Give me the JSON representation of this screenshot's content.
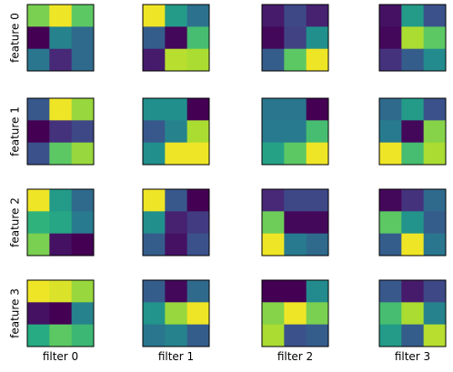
{
  "chart_data": {
    "type": "heatmap",
    "colormap": "viridis",
    "color_range": [
      0,
      1
    ],
    "rows": 4,
    "cols": 4,
    "row_labels": [
      "feature 0",
      "feature 1",
      "feature 2",
      "feature 3"
    ],
    "col_labels": [
      "filter 0",
      "filter 1",
      "filter 2",
      "filter 3"
    ],
    "grid": false,
    "ticks": false,
    "panels": [
      [
        [
          [
            0.8,
            0.98,
            0.75
          ],
          [
            0.0,
            0.45,
            0.35
          ],
          [
            0.4,
            0.12,
            0.35
          ]
        ],
        [
          [
            0.98,
            0.55,
            0.38
          ],
          [
            0.3,
            0.02,
            0.7
          ],
          [
            0.08,
            0.9,
            0.88
          ]
        ],
        [
          [
            0.08,
            0.22,
            0.1
          ],
          [
            0.02,
            0.2,
            0.5
          ],
          [
            0.3,
            0.75,
            0.98
          ]
        ],
        [
          [
            0.05,
            0.55,
            0.25
          ],
          [
            0.02,
            0.88,
            0.75
          ],
          [
            0.15,
            0.3,
            0.48
          ]
        ]
      ],
      [
        [
          [
            0.28,
            0.98,
            0.85
          ],
          [
            0.0,
            0.15,
            0.22
          ],
          [
            0.25,
            0.75,
            0.85
          ]
        ],
        [
          [
            0.5,
            0.5,
            0.0
          ],
          [
            0.28,
            0.45,
            0.88
          ],
          [
            0.5,
            0.98,
            0.98
          ]
        ],
        [
          [
            0.4,
            0.4,
            0.0
          ],
          [
            0.42,
            0.42,
            0.7
          ],
          [
            0.58,
            0.75,
            0.98
          ]
        ],
        [
          [
            0.35,
            0.55,
            0.25
          ],
          [
            0.42,
            0.02,
            0.82
          ],
          [
            0.98,
            0.7,
            0.88
          ]
        ]
      ],
      [
        [
          [
            0.98,
            0.55,
            0.35
          ],
          [
            0.65,
            0.6,
            0.42
          ],
          [
            0.8,
            0.05,
            0.0
          ]
        ],
        [
          [
            0.98,
            0.28,
            0.0
          ],
          [
            0.5,
            0.1,
            0.18
          ],
          [
            0.3,
            0.05,
            0.25
          ]
        ],
        [
          [
            0.12,
            0.22,
            0.22
          ],
          [
            0.78,
            0.02,
            0.02
          ],
          [
            0.98,
            0.42,
            0.35
          ]
        ],
        [
          [
            0.02,
            0.15,
            0.35
          ],
          [
            0.75,
            0.52,
            0.3
          ],
          [
            0.3,
            0.98,
            0.4
          ]
        ]
      ],
      [
        [
          [
            0.98,
            0.95,
            0.85
          ],
          [
            0.05,
            0.0,
            0.45
          ],
          [
            0.62,
            0.75,
            0.68
          ]
        ],
        [
          [
            0.3,
            0.02,
            0.35
          ],
          [
            0.52,
            0.85,
            0.98
          ],
          [
            0.4,
            0.45,
            0.3
          ]
        ],
        [
          [
            0.0,
            0.0,
            0.48
          ],
          [
            0.82,
            0.98,
            0.8
          ],
          [
            0.88,
            0.25,
            0.3
          ]
        ],
        [
          [
            0.28,
            0.08,
            0.22
          ],
          [
            0.7,
            0.88,
            0.45
          ],
          [
            0.55,
            0.3,
            0.9
          ]
        ]
      ]
    ]
  }
}
